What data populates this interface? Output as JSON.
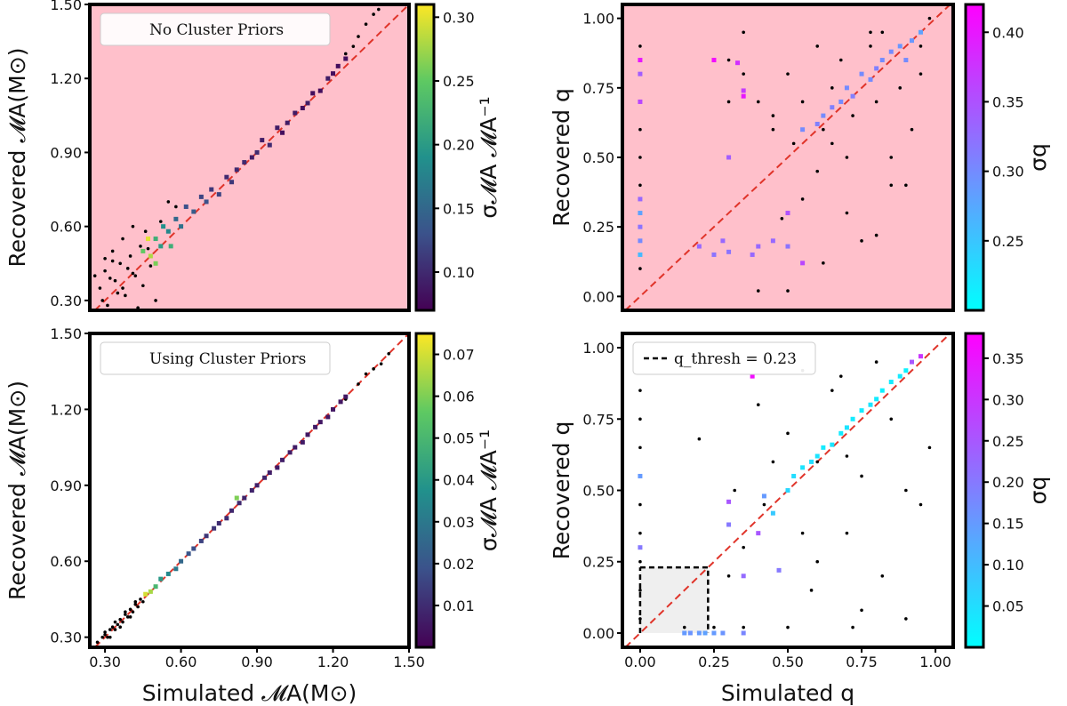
{
  "chart_data": [
    {
      "id": "tl",
      "type": "scatter",
      "title": "",
      "background": "#ffc0cb",
      "xlabel": "",
      "ylabel": "Recovered 𝓜A(M⊙)",
      "xlim": [
        0.24,
        1.5
      ],
      "ylim": [
        0.26,
        1.5
      ],
      "xticks": [],
      "yticks": [
        "0.30",
        "0.60",
        "0.90",
        "1.20",
        "1.50"
      ],
      "legend": {
        "text": "No Cluster Priors",
        "position": "top-left"
      },
      "colorbar": {
        "map": "viridis",
        "label": "σ𝓜A 𝓜A⁻¹",
        "ticks": [
          "0.10",
          "0.15",
          "0.20",
          "0.25",
          "0.30"
        ],
        "range": [
          0.07,
          0.31
        ]
      },
      "reference_line": "y = x",
      "series": [
        {
          "name": "black points",
          "marker": "dot",
          "color": "#000000",
          "region": "x 0.26–0.65 around y≈0.3–0.72 and near 1.3–1.45",
          "x": [
            0.28,
            0.3,
            0.31,
            0.33,
            0.34,
            0.36,
            0.37,
            0.38,
            0.4,
            0.41,
            0.42,
            0.44,
            0.45,
            0.46,
            0.48,
            0.5,
            0.52,
            0.55,
            0.58,
            0.3,
            0.32,
            0.35,
            0.39,
            0.43,
            0.47,
            0.26,
            0.29,
            0.33,
            0.37,
            0.41,
            1.28,
            1.3,
            1.33,
            1.36,
            1.38,
            1.42,
            1.25,
            1.45
          ],
          "y": [
            0.35,
            0.42,
            0.28,
            0.5,
            0.38,
            0.45,
            0.55,
            0.32,
            0.48,
            0.6,
            0.4,
            0.52,
            0.36,
            0.58,
            0.44,
            0.3,
            0.62,
            0.7,
            0.68,
            0.47,
            0.39,
            0.33,
            0.43,
            0.27,
            0.51,
            0.4,
            0.3,
            0.46,
            0.35,
            0.41,
            1.33,
            1.37,
            1.42,
            1.46,
            1.48,
            1.5,
            1.3,
            1.5
          ]
        },
        {
          "name": "colored squares",
          "marker": "square",
          "x": [
            0.45,
            0.48,
            0.5,
            0.52,
            0.55,
            0.58,
            0.6,
            0.62,
            0.65,
            0.68,
            0.7,
            0.72,
            0.75,
            0.78,
            0.8,
            0.82,
            0.85,
            0.88,
            0.9,
            0.92,
            0.95,
            0.98,
            1.0,
            1.02,
            1.05,
            1.08,
            1.1,
            1.12,
            1.15,
            1.18,
            1.2,
            1.22,
            1.25,
            0.47,
            0.5,
            0.53,
            0.56
          ],
          "y": [
            0.5,
            0.48,
            0.55,
            0.52,
            0.58,
            0.63,
            0.6,
            0.68,
            0.66,
            0.72,
            0.7,
            0.75,
            0.73,
            0.8,
            0.78,
            0.83,
            0.86,
            0.88,
            0.9,
            0.95,
            0.93,
            1.0,
            0.98,
            1.02,
            1.06,
            1.08,
            1.1,
            1.14,
            1.15,
            1.2,
            1.22,
            1.25,
            1.28,
            0.55,
            0.45,
            0.6,
            0.52
          ],
          "c": [
            0.25,
            0.28,
            0.22,
            0.2,
            0.18,
            0.15,
            0.16,
            0.13,
            0.14,
            0.12,
            0.13,
            0.11,
            0.12,
            0.1,
            0.11,
            0.1,
            0.1,
            0.09,
            0.1,
            0.09,
            0.1,
            0.09,
            0.08,
            0.09,
            0.09,
            0.08,
            0.09,
            0.08,
            0.08,
            0.09,
            0.08,
            0.08,
            0.08,
            0.3,
            0.26,
            0.19,
            0.22
          ]
        }
      ]
    },
    {
      "id": "tr",
      "type": "scatter",
      "title": "",
      "background": "#ffc0cb",
      "xlabel": "",
      "ylabel": "Recovered q",
      "xlim": [
        -0.06,
        1.06
      ],
      "ylim": [
        -0.05,
        1.05
      ],
      "xticks": [],
      "yticks": [
        "0.00",
        "0.25",
        "0.50",
        "0.75",
        "1.00"
      ],
      "colorbar": {
        "map": "cool",
        "label": "σq",
        "ticks": [
          "0.25",
          "0.30",
          "0.35",
          "0.40"
        ],
        "range": [
          0.2,
          0.42
        ]
      },
      "reference_line": "y = x",
      "series": [
        {
          "name": "black points",
          "marker": "dot",
          "color": "#000000",
          "x": [
            0.0,
            0.0,
            0.0,
            0.0,
            0.0,
            0.0,
            0.0,
            0.0,
            0.0,
            0.3,
            0.35,
            0.4,
            0.45,
            0.5,
            0.52,
            0.55,
            0.6,
            0.62,
            0.65,
            0.68,
            0.7,
            0.72,
            0.75,
            0.78,
            0.8,
            0.82,
            0.85,
            0.88,
            0.9,
            0.92,
            0.95,
            0.98,
            0.4,
            0.55,
            0.7,
            0.85,
            0.45,
            0.6,
            0.75,
            0.9,
            0.35,
            0.5,
            0.65,
            0.8,
            0.95,
            0.3,
            0.48,
            0.62,
            0.78
          ],
          "y": [
            0.1,
            0.2,
            0.3,
            0.4,
            0.5,
            0.6,
            0.7,
            0.8,
            0.9,
            0.85,
            0.8,
            0.7,
            0.65,
            0.8,
            0.55,
            0.7,
            0.9,
            0.6,
            0.75,
            0.85,
            0.5,
            0.65,
            0.8,
            0.9,
            0.7,
            0.95,
            0.4,
            0.75,
            0.85,
            0.6,
            0.9,
            1.0,
            0.02,
            0.35,
            0.3,
            0.5,
            0.6,
            0.45,
            0.2,
            0.4,
            0.95,
            0.02,
            0.55,
            0.22,
            0.8,
            0.7,
            0.28,
            0.12,
            0.95
          ]
        },
        {
          "name": "colored squares",
          "marker": "square",
          "x": [
            0.0,
            0.0,
            0.0,
            0.0,
            0.0,
            0.0,
            0.0,
            0.0,
            0.2,
            0.25,
            0.28,
            0.3,
            0.33,
            0.35,
            0.38,
            0.4,
            0.45,
            0.5,
            0.55,
            0.6,
            0.62,
            0.65,
            0.68,
            0.7,
            0.72,
            0.75,
            0.78,
            0.8,
            0.82,
            0.85,
            0.88,
            0.9,
            0.92,
            0.95,
            0.3,
            0.25,
            0.35,
            0.5,
            0.55
          ],
          "y": [
            0.2,
            0.25,
            0.3,
            0.15,
            0.7,
            0.8,
            0.85,
            0.35,
            0.18,
            0.15,
            0.2,
            0.16,
            0.84,
            0.74,
            0.15,
            0.18,
            0.2,
            0.18,
            0.6,
            0.62,
            0.65,
            0.68,
            0.7,
            0.75,
            0.72,
            0.8,
            0.78,
            0.82,
            0.85,
            0.88,
            0.9,
            0.85,
            0.92,
            0.95,
            0.5,
            0.85,
            0.72,
            0.3,
            0.12
          ],
          "c": [
            0.3,
            0.32,
            0.28,
            0.26,
            0.36,
            0.34,
            0.4,
            0.33,
            0.33,
            0.32,
            0.33,
            0.32,
            0.38,
            0.37,
            0.33,
            0.33,
            0.33,
            0.32,
            0.3,
            0.31,
            0.3,
            0.31,
            0.3,
            0.3,
            0.31,
            0.3,
            0.3,
            0.31,
            0.3,
            0.3,
            0.29,
            0.3,
            0.29,
            0.28,
            0.34,
            0.41,
            0.4,
            0.35,
            0.36
          ]
        }
      ]
    },
    {
      "id": "bl",
      "type": "scatter",
      "title": "",
      "background": "#ffffff",
      "xlabel": "Simulated 𝓜A(M⊙)",
      "ylabel": "Recovered 𝓜A(M⊙)",
      "xlim": [
        0.24,
        1.5
      ],
      "ylim": [
        0.26,
        1.5
      ],
      "xticks": [
        "0.30",
        "0.60",
        "0.90",
        "1.20",
        "1.50"
      ],
      "yticks": [
        "0.30",
        "0.60",
        "0.90",
        "1.20",
        "1.50"
      ],
      "legend": {
        "text": "Using Cluster Priors",
        "position": "top-left"
      },
      "colorbar": {
        "map": "viridis",
        "label": "σ𝓜A 𝓜A⁻¹",
        "ticks": [
          "0.01",
          "0.02",
          "0.03",
          "0.04",
          "0.05",
          "0.06",
          "0.07"
        ],
        "range": [
          0.0,
          0.075
        ]
      },
      "reference_line": "y = x",
      "series": [
        {
          "name": "black points",
          "marker": "dot",
          "color": "#000000",
          "x": [
            0.27,
            0.29,
            0.3,
            0.31,
            0.32,
            0.33,
            0.34,
            0.35,
            0.36,
            0.37,
            0.38,
            0.39,
            0.4,
            0.41,
            0.42,
            0.43,
            0.44,
            0.45,
            0.46,
            0.28,
            0.3,
            0.32,
            0.34,
            0.36,
            0.38,
            0.4,
            0.42,
            1.3,
            1.33,
            1.36,
            1.39,
            1.42,
            1.25
          ],
          "y": [
            0.28,
            0.3,
            0.31,
            0.3,
            0.33,
            0.34,
            0.33,
            0.35,
            0.37,
            0.36,
            0.39,
            0.38,
            0.41,
            0.4,
            0.43,
            0.42,
            0.45,
            0.44,
            0.47,
            0.26,
            0.32,
            0.3,
            0.36,
            0.34,
            0.4,
            0.38,
            0.44,
            1.3,
            1.34,
            1.36,
            1.38,
            1.42,
            1.24
          ]
        },
        {
          "name": "colored squares",
          "marker": "square",
          "x": [
            0.46,
            0.48,
            0.5,
            0.52,
            0.55,
            0.58,
            0.6,
            0.63,
            0.65,
            0.68,
            0.7,
            0.73,
            0.75,
            0.78,
            0.8,
            0.83,
            0.85,
            0.88,
            0.9,
            0.93,
            0.95,
            0.98,
            1.0,
            1.03,
            1.05,
            1.08,
            1.1,
            1.13,
            1.15,
            1.18,
            1.2,
            1.23,
            1.25,
            0.82
          ],
          "y": [
            0.47,
            0.48,
            0.5,
            0.53,
            0.55,
            0.57,
            0.6,
            0.63,
            0.65,
            0.68,
            0.7,
            0.73,
            0.75,
            0.77,
            0.8,
            0.83,
            0.85,
            0.88,
            0.9,
            0.93,
            0.95,
            0.97,
            1.0,
            1.03,
            1.05,
            1.07,
            1.1,
            1.13,
            1.15,
            1.17,
            1.2,
            1.23,
            1.25,
            0.85
          ],
          "c": [
            0.07,
            0.065,
            0.05,
            0.04,
            0.035,
            0.03,
            0.025,
            0.02,
            0.018,
            0.015,
            0.012,
            0.012,
            0.01,
            0.01,
            0.009,
            0.009,
            0.008,
            0.008,
            0.007,
            0.008,
            0.007,
            0.006,
            0.007,
            0.006,
            0.006,
            0.006,
            0.005,
            0.006,
            0.005,
            0.005,
            0.005,
            0.005,
            0.005,
            0.06
          ]
        }
      ]
    },
    {
      "id": "br",
      "type": "scatter",
      "title": "",
      "background": "#ffffff",
      "xlabel": "Simulated q",
      "ylabel": "Recovered q",
      "xlim": [
        -0.06,
        1.06
      ],
      "ylim": [
        -0.05,
        1.05
      ],
      "xticks": [
        "0.00",
        "0.25",
        "0.50",
        "0.75",
        "1.00"
      ],
      "yticks": [
        "0.00",
        "0.25",
        "0.50",
        "0.75",
        "1.00"
      ],
      "legend": {
        "text": "q_thresh = 0.23",
        "position": "top-left",
        "style": "dashed black line"
      },
      "threshold": 0.23,
      "colorbar": {
        "map": "cool",
        "label": "σq",
        "ticks": [
          "0.05",
          "0.10",
          "0.15",
          "0.20",
          "0.25",
          "0.30",
          "0.35"
        ],
        "range": [
          0.0,
          0.38
        ]
      },
      "reference_line": "y = x",
      "series": [
        {
          "name": "black points",
          "marker": "dot",
          "color": "#000000",
          "x": [
            0.0,
            0.0,
            0.0,
            0.0,
            0.0,
            0.0,
            0.0,
            0.0,
            0.0,
            0.2,
            0.3,
            0.32,
            0.35,
            0.4,
            0.45,
            0.5,
            0.55,
            0.6,
            0.65,
            0.7,
            0.72,
            0.75,
            0.8,
            0.85,
            0.9,
            0.95,
            0.98,
            0.42,
            0.58,
            0.68,
            0.82,
            0.9,
            0.6,
            0.35,
            0.5,
            0.7,
            0.75,
            0.55,
            0.25,
            0.15
          ],
          "y": [
            0.05,
            0.15,
            0.25,
            0.35,
            0.45,
            0.55,
            0.65,
            0.75,
            0.85,
            0.68,
            0.2,
            0.5,
            0.3,
            0.8,
            0.6,
            0.02,
            0.35,
            0.6,
            0.85,
            0.35,
            0.02,
            0.55,
            0.95,
            0.75,
            0.5,
            0.45,
            0.65,
            0.45,
            0.15,
            0.9,
            0.2,
            0.05,
            0.25,
            0.02,
            0.7,
            0.62,
            0.08,
            0.92,
            0.02,
            0.02
          ]
        },
        {
          "name": "colored squares",
          "marker": "square",
          "x": [
            0.15,
            0.17,
            0.2,
            0.22,
            0.25,
            0.28,
            0.3,
            0.35,
            0.4,
            0.45,
            0.5,
            0.52,
            0.55,
            0.58,
            0.6,
            0.62,
            0.65,
            0.68,
            0.7,
            0.72,
            0.75,
            0.78,
            0.8,
            0.82,
            0.85,
            0.88,
            0.9,
            0.92,
            0.95,
            0.3,
            0.38,
            0.42,
            0.47,
            0.35,
            0.0,
            0.0
          ],
          "y": [
            0.0,
            0.0,
            0.0,
            0.0,
            0.0,
            0.0,
            0.38,
            0.2,
            0.35,
            0.42,
            0.5,
            0.55,
            0.58,
            0.6,
            0.62,
            0.65,
            0.66,
            0.7,
            0.72,
            0.75,
            0.78,
            0.8,
            0.82,
            0.85,
            0.88,
            0.9,
            0.92,
            0.95,
            0.97,
            0.46,
            0.9,
            0.48,
            0.22,
            0.0,
            0.3,
            0.55
          ],
          "c": [
            0.15,
            0.16,
            0.15,
            0.14,
            0.15,
            0.16,
            0.2,
            0.22,
            0.25,
            0.08,
            0.06,
            0.05,
            0.04,
            0.05,
            0.04,
            0.03,
            0.04,
            0.03,
            0.04,
            0.03,
            0.03,
            0.04,
            0.03,
            0.02,
            0.03,
            0.03,
            0.02,
            0.25,
            0.3,
            0.25,
            0.36,
            0.15,
            0.2,
            0.18,
            0.2,
            0.15
          ]
        }
      ]
    }
  ]
}
